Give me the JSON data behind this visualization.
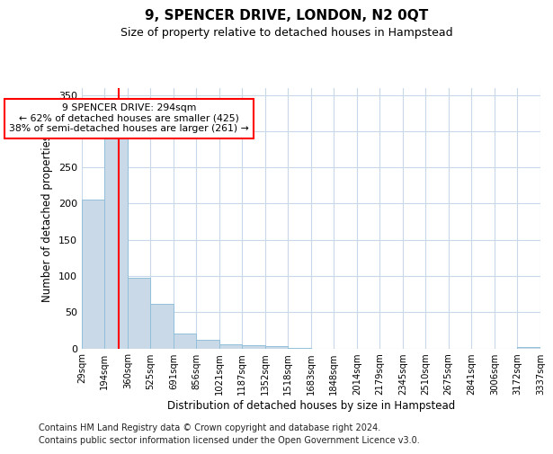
{
  "title": "9, SPENCER DRIVE, LONDON, N2 0QT",
  "subtitle": "Size of property relative to detached houses in Hampstead",
  "xlabel": "Distribution of detached houses by size in Hampstead",
  "ylabel": "Number of detached properties",
  "bar_edges": [
    29,
    194,
    360,
    525,
    691,
    856,
    1021,
    1187,
    1352,
    1518,
    1683,
    1848,
    2014,
    2179,
    2345,
    2510,
    2675,
    2841,
    3006,
    3172,
    3337
  ],
  "bar_heights": [
    205,
    290,
    98,
    61,
    21,
    12,
    6,
    4,
    3,
    1,
    0,
    0,
    0,
    0,
    0,
    0,
    0,
    0,
    0,
    2
  ],
  "bar_color": "#c9d9e8",
  "bar_edge_color": "#92c0da",
  "vline_x": 294,
  "vline_color": "red",
  "annotation_text": "9 SPENCER DRIVE: 294sqm\n← 62% of detached houses are smaller (425)\n38% of semi-detached houses are larger (261) →",
  "annotation_box_color": "white",
  "annotation_box_edgecolor": "red",
  "ylim": [
    0,
    360
  ],
  "yticks": [
    0,
    50,
    100,
    150,
    200,
    250,
    300,
    350
  ],
  "tick_labels": [
    "29sqm",
    "194sqm",
    "360sqm",
    "525sqm",
    "691sqm",
    "856sqm",
    "1021sqm",
    "1187sqm",
    "1352sqm",
    "1518sqm",
    "1683sqm",
    "1848sqm",
    "2014sqm",
    "2179sqm",
    "2345sqm",
    "2510sqm",
    "2675sqm",
    "2841sqm",
    "3006sqm",
    "3172sqm",
    "3337sqm"
  ],
  "footnote": "Contains HM Land Registry data © Crown copyright and database right 2024.\nContains public sector information licensed under the Open Government Licence v3.0.",
  "bg_color": "white",
  "grid_color": "#c8d8e8",
  "title_fontsize": 11,
  "subtitle_fontsize": 9,
  "footnote_fontsize": 7
}
